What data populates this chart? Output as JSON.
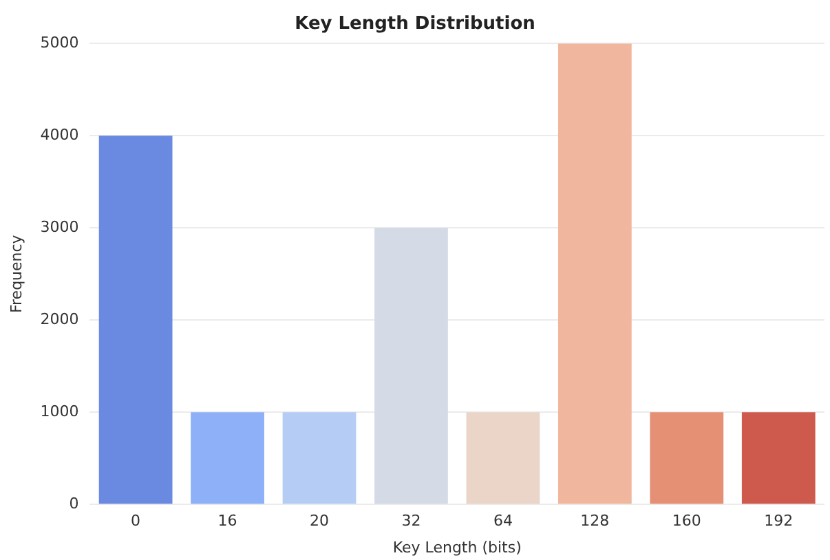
{
  "chart_data": {
    "type": "bar",
    "title": "Key Length Distribution",
    "xlabel": "Key Length (bits)",
    "ylabel": "Frequency",
    "categories": [
      "0",
      "16",
      "20",
      "32",
      "64",
      "128",
      "160",
      "192"
    ],
    "values": [
      4000,
      1000,
      1000,
      3000,
      1000,
      5000,
      1000,
      1000
    ],
    "colors": [
      "#6a89e0",
      "#8db0f8",
      "#b5cdf5",
      "#d4dbe6",
      "#ead5c8",
      "#f0b79e",
      "#e58f74",
      "#cd5a4d"
    ],
    "ylim": [
      0,
      5000
    ],
    "yticks": [
      0,
      1000,
      2000,
      3000,
      4000,
      5000
    ],
    "grid": "y"
  }
}
